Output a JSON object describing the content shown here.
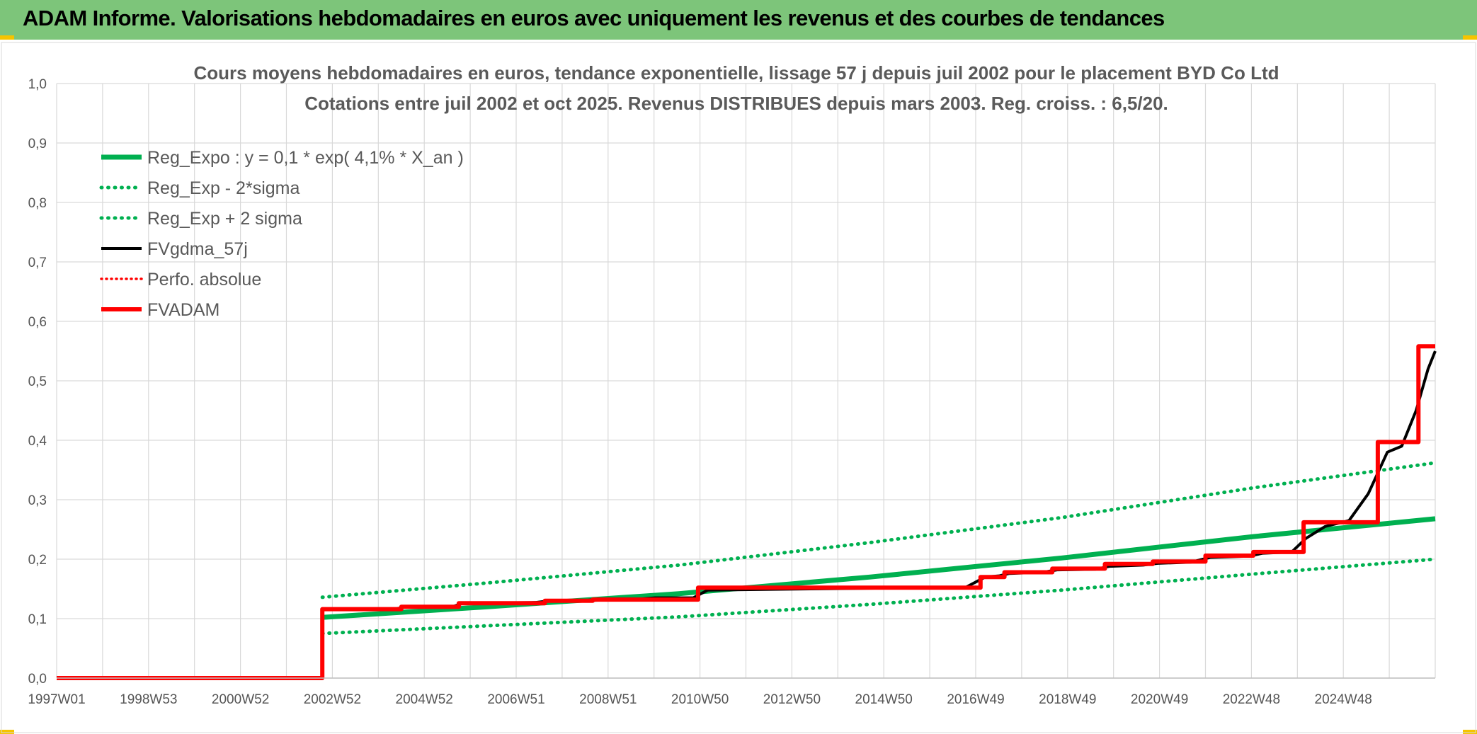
{
  "header": {
    "title": "ADAM Informe. Valorisations hebdomadaires en euros avec uniquement les revenus et des courbes de tendances"
  },
  "colors": {
    "banner": "#7dc57a",
    "reg": "#00b050",
    "fvgdma": "#000000",
    "fvadam": "#ff0000"
  },
  "chart_data": {
    "type": "line",
    "title": "Cours moyens hebdomadaires en euros, tendance exponentielle, lissage 57 j depuis juil 2002 pour le placement BYD Co Ltd",
    "subtitle": "Cotations entre juil 2002 et oct 2025. Revenus DISTRIBUES depuis mars 2003. Reg. croiss. : 6,5/20.",
    "x_range": [
      1997.0,
      2025.8
    ],
    "ylim": [
      0,
      1.0
    ],
    "x_tick_labels": [
      "1997W01",
      "1998W53",
      "2000W52",
      "2002W52",
      "2004W52",
      "2006W51",
      "2008W51",
      "2010W50",
      "2012W50",
      "2014W50",
      "2016W49",
      "2018W49",
      "2020W49",
      "2022W48",
      "2024W48"
    ],
    "y_tick_labels": [
      "0,0",
      "0,1",
      "0,2",
      "0,3",
      "0,4",
      "0,5",
      "0,6",
      "0,7",
      "0,8",
      "0,9",
      "1,0"
    ],
    "grid": true,
    "legend_position": "top-left",
    "series": [
      {
        "name": "Reg_Expo : y = 0,1 * exp( 4,1% *  X_an )",
        "style": "solid",
        "points": [
          [
            2002.55,
            0.102
          ],
          [
            2006.0,
            0.12
          ],
          [
            2010.0,
            0.142
          ],
          [
            2014.0,
            0.17
          ],
          [
            2018.0,
            0.202
          ],
          [
            2022.0,
            0.238
          ],
          [
            2025.8,
            0.268
          ]
        ]
      },
      {
        "name": "Reg_Exp - 2*sigma",
        "style": "dotted",
        "points": [
          [
            2002.55,
            0.075
          ],
          [
            2006.0,
            0.088
          ],
          [
            2010.0,
            0.103
          ],
          [
            2014.0,
            0.124
          ],
          [
            2018.0,
            0.148
          ],
          [
            2022.0,
            0.175
          ],
          [
            2025.8,
            0.2
          ]
        ]
      },
      {
        "name": "Reg_Exp + 2 sigma",
        "style": "dotted",
        "points": [
          [
            2002.55,
            0.136
          ],
          [
            2006.0,
            0.16
          ],
          [
            2010.0,
            0.19
          ],
          [
            2014.0,
            0.228
          ],
          [
            2018.0,
            0.27
          ],
          [
            2022.0,
            0.32
          ],
          [
            2025.8,
            0.362
          ]
        ]
      },
      {
        "name": "FVgdma_57j",
        "style": "solid",
        "points": [
          [
            1997.0,
            0.0
          ],
          [
            2002.55,
            0.0
          ],
          [
            2002.55,
            0.115
          ],
          [
            2004.0,
            0.115
          ],
          [
            2004.3,
            0.12
          ],
          [
            2005.3,
            0.121
          ],
          [
            2005.5,
            0.126
          ],
          [
            2007.0,
            0.127
          ],
          [
            2007.3,
            0.13
          ],
          [
            2008.1,
            0.131
          ],
          [
            2008.3,
            0.133
          ],
          [
            2009.2,
            0.133
          ],
          [
            2009.5,
            0.135
          ],
          [
            2010.3,
            0.135
          ],
          [
            2010.6,
            0.148
          ],
          [
            2016.0,
            0.153
          ],
          [
            2016.4,
            0.17
          ],
          [
            2016.7,
            0.172
          ],
          [
            2016.9,
            0.176
          ],
          [
            2017.6,
            0.178
          ],
          [
            2017.9,
            0.182
          ],
          [
            2018.7,
            0.183
          ],
          [
            2019.0,
            0.188
          ],
          [
            2019.7,
            0.19
          ],
          [
            2020.0,
            0.193
          ],
          [
            2020.7,
            0.195
          ],
          [
            2021.1,
            0.203
          ],
          [
            2021.9,
            0.205
          ],
          [
            2022.2,
            0.21
          ],
          [
            2022.8,
            0.212
          ],
          [
            2023.1,
            0.235
          ],
          [
            2023.5,
            0.255
          ],
          [
            2024.0,
            0.265
          ],
          [
            2024.4,
            0.31
          ],
          [
            2024.8,
            0.38
          ],
          [
            2025.1,
            0.39
          ],
          [
            2025.4,
            0.45
          ],
          [
            2025.65,
            0.52
          ],
          [
            2025.8,
            0.55
          ]
        ]
      },
      {
        "name": "Perfo. absolue",
        "style": "dotted",
        "points": []
      },
      {
        "name": "FVADAM",
        "style": "solid",
        "points": [
          [
            1997.0,
            0.0
          ],
          [
            2002.55,
            0.0
          ],
          [
            2002.55,
            0.116
          ],
          [
            2004.2,
            0.116
          ],
          [
            2004.2,
            0.12
          ],
          [
            2005.4,
            0.12
          ],
          [
            2005.4,
            0.126
          ],
          [
            2007.2,
            0.126
          ],
          [
            2007.2,
            0.13
          ],
          [
            2008.2,
            0.13
          ],
          [
            2008.2,
            0.132
          ],
          [
            2010.4,
            0.132
          ],
          [
            2010.4,
            0.152
          ],
          [
            2016.3,
            0.152
          ],
          [
            2016.3,
            0.17
          ],
          [
            2016.8,
            0.17
          ],
          [
            2016.8,
            0.178
          ],
          [
            2017.8,
            0.178
          ],
          [
            2017.8,
            0.184
          ],
          [
            2018.9,
            0.184
          ],
          [
            2018.9,
            0.192
          ],
          [
            2019.9,
            0.192
          ],
          [
            2019.9,
            0.196
          ],
          [
            2021.0,
            0.196
          ],
          [
            2021.0,
            0.206
          ],
          [
            2022.0,
            0.206
          ],
          [
            2022.0,
            0.212
          ],
          [
            2023.05,
            0.212
          ],
          [
            2023.05,
            0.262
          ],
          [
            2023.5,
            0.262
          ],
          [
            2023.5,
            0.262
          ],
          [
            2024.6,
            0.262
          ],
          [
            2024.6,
            0.397
          ],
          [
            2025.45,
            0.397
          ],
          [
            2025.45,
            0.558
          ],
          [
            2025.8,
            0.558
          ]
        ]
      }
    ]
  }
}
